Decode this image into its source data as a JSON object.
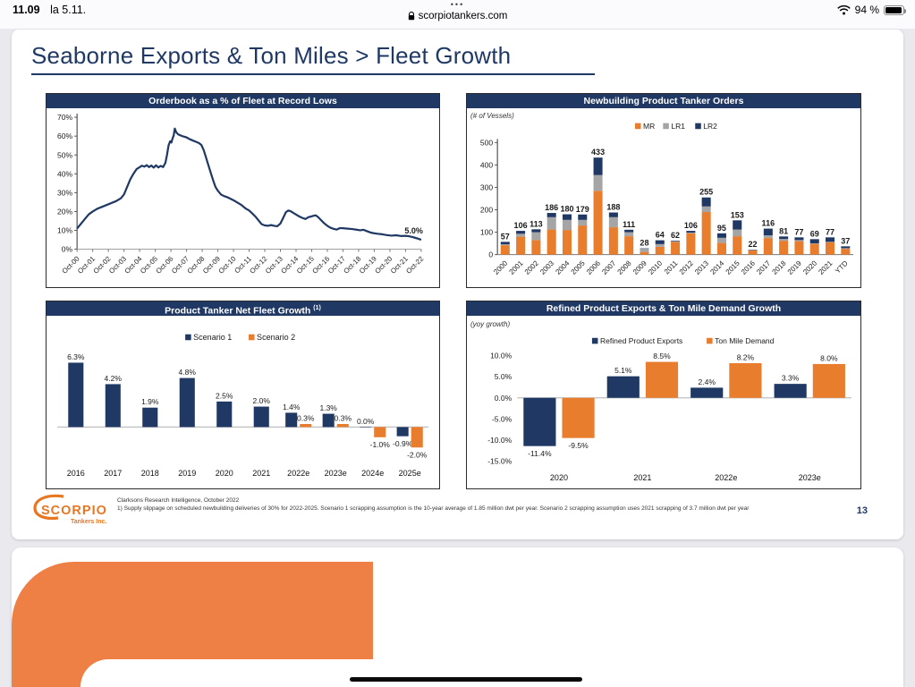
{
  "status": {
    "time": "11.09",
    "date": "la 5.11.",
    "dots": "•••",
    "domain": "scorpiotankers.com",
    "battery": "94 %"
  },
  "slide": {
    "title": "Seaborne Exports & Ton Miles > Fleet Growth",
    "page_number": "13",
    "footnotes": {
      "line1": "Clarksons Research Intelligence, October 2022",
      "line2": "1) Supply slippage on scheduled newbuilding deliveries of 30% for 2022-2025. Scenario 1 scrapping assumption is the 10-year average of 1.85 million dwt per year. Scenario 2 scrapping assumption uses 2021 scrapping of 3.7 million dwt per year"
    },
    "logo": {
      "name": "SCORPIO",
      "sub": "Tankers Inc."
    }
  },
  "colors": {
    "navy": "#1F3864",
    "orange": "#E87D2E",
    "gray": "#A5A5A5",
    "logo_orange": "#E87722"
  },
  "chart_data": [
    {
      "type": "line",
      "title": "Orderbook as a % of Fleet at Record Lows",
      "ylim": [
        0,
        70
      ],
      "yticks": [
        0,
        10,
        20,
        30,
        40,
        50,
        60,
        70
      ],
      "ytick_suffix": "%",
      "xlim": [
        0,
        22
      ],
      "x_tick_labels": [
        "Oct-00",
        "Oct-01",
        "Oct-02",
        "Oct-03",
        "Oct-04",
        "Oct-05",
        "Oct-06",
        "Oct-07",
        "Oct-08",
        "Oct-09",
        "Oct-10",
        "Oct-11",
        "Oct-12",
        "Oct-13",
        "Oct-14",
        "Oct-15",
        "Oct-16",
        "Oct-17",
        "Oct-18",
        "Oct-19",
        "Oct-20",
        "Oct-21",
        "Oct-22"
      ],
      "end_label": "5.0%",
      "series": [
        {
          "name": "Orderbook as % of fleet",
          "color": "#1F3864",
          "points": [
            [
              0,
              11
            ],
            [
              0.25,
              13.5
            ],
            [
              0.5,
              16
            ],
            [
              0.75,
              18.5
            ],
            [
              1,
              20
            ],
            [
              1.3,
              21.5
            ],
            [
              1.6,
              22.5
            ],
            [
              1.9,
              23.5
            ],
            [
              2.2,
              24.5
            ],
            [
              2.5,
              25.5
            ],
            [
              2.8,
              27
            ],
            [
              3,
              29
            ],
            [
              3.2,
              33
            ],
            [
              3.4,
              37
            ],
            [
              3.6,
              40
            ],
            [
              3.8,
              42.5
            ],
            [
              4,
              43.5
            ],
            [
              4.15,
              44.3
            ],
            [
              4.3,
              43.8
            ],
            [
              4.45,
              44.6
            ],
            [
              4.6,
              43.6
            ],
            [
              4.75,
              44.4
            ],
            [
              4.9,
              43.3
            ],
            [
              5.05,
              44.5
            ],
            [
              5.2,
              43.4
            ],
            [
              5.35,
              44.2
            ],
            [
              5.5,
              43.6
            ],
            [
              5.65,
              46
            ],
            [
              5.75,
              50
            ],
            [
              5.85,
              55
            ],
            [
              5.95,
              57.3
            ],
            [
              6.03,
              56.6
            ],
            [
              6.1,
              58.6
            ],
            [
              6.18,
              60.5
            ],
            [
              6.25,
              64
            ],
            [
              6.33,
              62.2
            ],
            [
              6.45,
              61
            ],
            [
              6.6,
              60.4
            ],
            [
              6.8,
              59.8
            ],
            [
              7,
              59.3
            ],
            [
              7.2,
              58.4
            ],
            [
              7.4,
              57.7
            ],
            [
              7.6,
              57
            ],
            [
              7.8,
              56.3
            ],
            [
              7.95,
              55.3
            ],
            [
              8.1,
              52.5
            ],
            [
              8.25,
              48.5
            ],
            [
              8.4,
              44.5
            ],
            [
              8.55,
              40.5
            ],
            [
              8.7,
              36.5
            ],
            [
              8.85,
              33
            ],
            [
              9,
              31
            ],
            [
              9.2,
              29
            ],
            [
              9.4,
              28.2
            ],
            [
              9.6,
              27.6
            ],
            [
              9.8,
              26.8
            ],
            [
              10,
              26
            ],
            [
              10.2,
              25
            ],
            [
              10.5,
              23.5
            ],
            [
              10.8,
              21.5
            ],
            [
              11,
              20.5
            ],
            [
              11.2,
              19
            ],
            [
              11.4,
              17.3
            ],
            [
              11.6,
              15.3
            ],
            [
              11.8,
              13.3
            ],
            [
              12,
              12.6
            ],
            [
              12.2,
              12.4
            ],
            [
              12.4,
              12.8
            ],
            [
              12.6,
              12.4
            ],
            [
              12.8,
              12.2
            ],
            [
              13,
              13.6
            ],
            [
              13.2,
              17
            ],
            [
              13.35,
              19.6
            ],
            [
              13.5,
              20.5
            ],
            [
              13.65,
              20.2
            ],
            [
              13.8,
              19.4
            ],
            [
              14,
              18.4
            ],
            [
              14.2,
              17.4
            ],
            [
              14.4,
              16.6
            ],
            [
              14.6,
              16
            ],
            [
              14.8,
              17
            ],
            [
              14.95,
              17.3
            ],
            [
              15.1,
              17.7
            ],
            [
              15.25,
              18
            ],
            [
              15.4,
              17.1
            ],
            [
              15.6,
              15.4
            ],
            [
              15.8,
              13.7
            ],
            [
              16,
              12.4
            ],
            [
              16.2,
              11.4
            ],
            [
              16.4,
              10.8
            ],
            [
              16.6,
              10.4
            ],
            [
              16.8,
              11.2
            ],
            [
              17,
              11.1
            ],
            [
              17.3,
              10.9
            ],
            [
              17.6,
              10.7
            ],
            [
              17.9,
              10.3
            ],
            [
              18.1,
              10
            ],
            [
              18.3,
              10.3
            ],
            [
              18.5,
              9.7
            ],
            [
              18.7,
              9
            ],
            [
              18.9,
              8.6
            ],
            [
              19.2,
              8.2
            ],
            [
              19.5,
              7.9
            ],
            [
              19.8,
              7.5
            ],
            [
              20.1,
              7.2
            ],
            [
              20.4,
              7.4
            ],
            [
              20.7,
              7
            ],
            [
              21,
              7.1
            ],
            [
              21.2,
              6.9
            ],
            [
              21.4,
              6.5
            ],
            [
              21.6,
              6.1
            ],
            [
              21.8,
              5.6
            ],
            [
              22,
              5
            ]
          ]
        }
      ]
    },
    {
      "type": "stacked-bar",
      "title": "Newbuilding Product Tanker Orders",
      "subtitle": "(# of Vessels)",
      "legend": [
        "MR",
        "LR1",
        "LR2"
      ],
      "legend_colors": [
        "#E87D2E",
        "#A5A5A5",
        "#1F3864"
      ],
      "ylim": [
        0,
        500
      ],
      "yticks": [
        0,
        100,
        200,
        300,
        400,
        500
      ],
      "categories": [
        "2000",
        "2001",
        "2002",
        "2003",
        "2004",
        "2005",
        "2006",
        "2007",
        "2008",
        "2009",
        "2010",
        "2011",
        "2012",
        "2013",
        "2014",
        "2015",
        "2016",
        "2017",
        "2018",
        "2019",
        "2020",
        "2021",
        "YTD"
      ],
      "totals": [
        57,
        106,
        113,
        186,
        180,
        179,
        433,
        188,
        111,
        28,
        64,
        62,
        106,
        255,
        95,
        153,
        22,
        116,
        81,
        77,
        69,
        77,
        37
      ],
      "series": [
        {
          "name": "MR",
          "color": "#E87D2E",
          "values": [
            42,
            80,
            65,
            112,
            110,
            130,
            285,
            122,
            82,
            12,
            35,
            57,
            95,
            190,
            52,
            82,
            19,
            74,
            62,
            60,
            48,
            55,
            24
          ]
        },
        {
          "name": "LR1",
          "color": "#A5A5A5",
          "values": [
            4,
            13,
            35,
            55,
            45,
            25,
            70,
            45,
            18,
            14,
            12,
            2,
            3,
            25,
            23,
            30,
            1,
            12,
            8,
            5,
            2,
            2,
            5
          ]
        },
        {
          "name": "LR2",
          "color": "#1F3864",
          "values": [
            11,
            13,
            13,
            19,
            25,
            24,
            78,
            21,
            11,
            2,
            17,
            3,
            8,
            40,
            20,
            41,
            2,
            30,
            11,
            12,
            19,
            20,
            8
          ]
        }
      ],
      "ytd_mr_label": "24"
    },
    {
      "type": "grouped-bar",
      "title": "Product Tanker Net Fleet Growth",
      "title_superscript": "(1)",
      "legend": [
        "Scenario 1",
        "Scenario 2"
      ],
      "legend_colors": [
        "#1F3864",
        "#E87D2E"
      ],
      "ylim": [
        -3,
        7
      ],
      "categories": [
        "2016",
        "2017",
        "2018",
        "2019",
        "2020",
        "2021",
        "2022e",
        "2023e",
        "2024e",
        "2025e"
      ],
      "series": [
        {
          "name": "Scenario 1",
          "color": "#1F3864",
          "values": [
            6.3,
            4.2,
            1.9,
            4.8,
            2.5,
            2.0,
            1.4,
            1.3,
            0.0,
            -0.9
          ]
        },
        {
          "name": "Scenario 2",
          "color": "#E87D2E",
          "values": [
            null,
            null,
            null,
            null,
            null,
            null,
            0.3,
            0.3,
            -1.0,
            -2.0
          ]
        }
      ],
      "label_suffix": "%"
    },
    {
      "type": "grouped-bar",
      "title": "Refined Product Exports & Ton Mile Demand Growth",
      "subtitle": "(yoy growth)",
      "legend": [
        "Refined Product Exports",
        "Ton Mile Demand"
      ],
      "legend_colors": [
        "#1F3864",
        "#E87D2E"
      ],
      "ylim": [
        -15,
        10
      ],
      "yticks": [
        10,
        5,
        0,
        -5,
        -10,
        -15
      ],
      "ytick_decimals": 1,
      "ytick_suffix": "%",
      "categories": [
        "2020",
        "2021",
        "2022e",
        "2023e"
      ],
      "series": [
        {
          "name": "Refined Product Exports",
          "color": "#1F3864",
          "values": [
            -11.4,
            5.1,
            2.4,
            3.3
          ]
        },
        {
          "name": "Ton Mile Demand",
          "color": "#E87D2E",
          "values": [
            -9.5,
            8.5,
            8.2,
            8.0
          ]
        }
      ],
      "label_suffix": "%"
    }
  ]
}
